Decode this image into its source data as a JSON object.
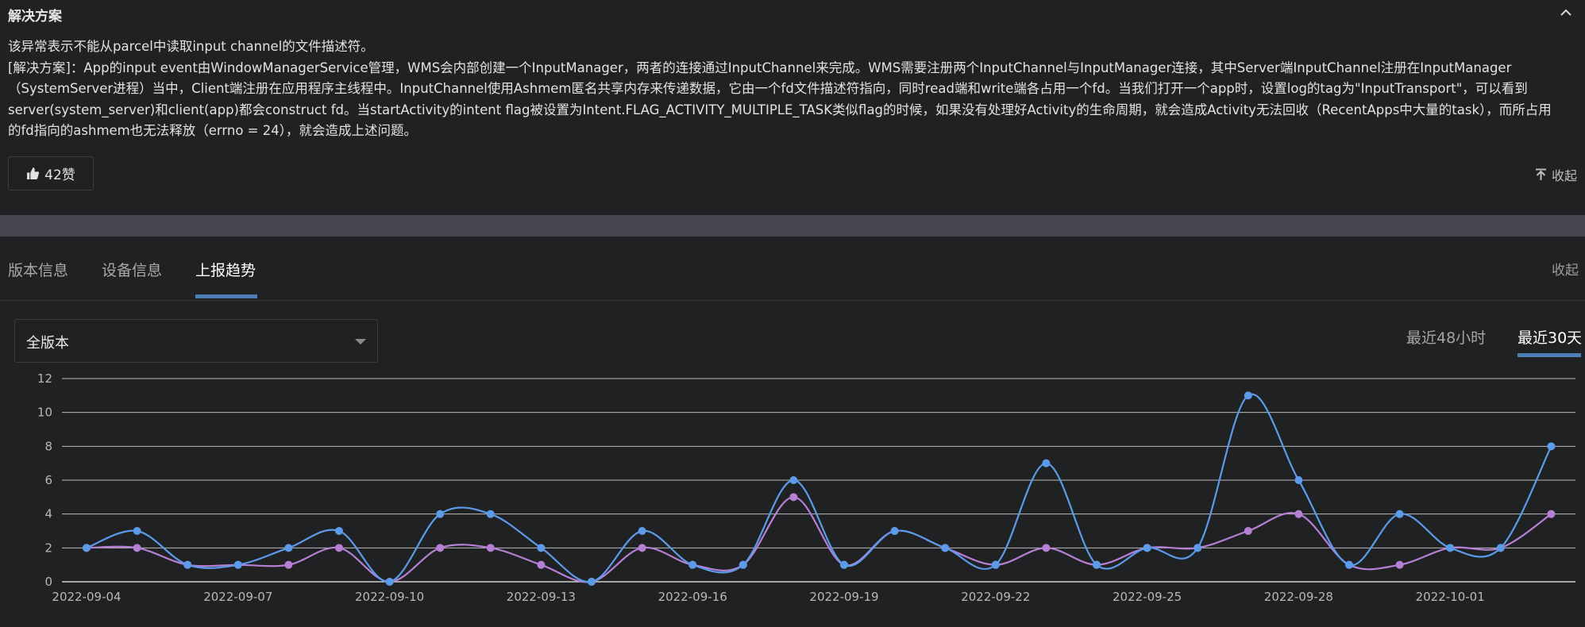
{
  "solution": {
    "title": "解决方案",
    "paragraph1": "该异常表示不能从parcel中读取input channel的文件描述符。",
    "paragraph2": "[解决方案]：App的input event由WindowManagerService管理，WMS会内部创建一个InputManager，两者的连接通过InputChannel来完成。WMS需要注册两个InputChannel与InputManager连接，其中Server端InputChannel注册在InputManager（SystemServer进程）当中，Client端注册在应用程序主线程中。InputChannel使用Ashmem匿名共享内存来传递数据，它由一个fd文件描述符指向，同时read端和write端各占用一个fd。当我们打开一个app时，设置log的tag为\"InputTransport\"，可以看到server(system_server)和client(app)都会construct fd。当startActivity的intent flag被设置为Intent.FLAG_ACTIVITY_MULTIPLE_TASK类似flag的时候，如果没有处理好Activity的生命周期，就会造成Activity无法回收（RecentApps中大量的task），而所占用的fd指向的ashmem也无法释放（errno = 24），就会造成上述问题。",
    "like_label": "42赞",
    "collapse_label": "收起"
  },
  "tabs": {
    "items": [
      "版本信息",
      "设备信息",
      "上报趋势"
    ],
    "active": 2,
    "collapse_label": "收起"
  },
  "filter": {
    "version_select": "全版本",
    "range_tabs": [
      "最近48小时",
      "最近30天"
    ],
    "active_range": 1
  },
  "colors": {
    "background": "#202123",
    "series_blue": "#5b9bea",
    "series_purple": "#b57fd6",
    "accent": "#4d7fb6"
  },
  "icons": {
    "collapse_arrow": "chevron-up-icon",
    "like": "thumbs-up-icon",
    "collapse_top": "arrow-to-top-icon",
    "select_caret": "caret-down-icon"
  },
  "chart_data": {
    "type": "line",
    "x": [
      "2022-09-04",
      "2022-09-05",
      "2022-09-06",
      "2022-09-07",
      "2022-09-08",
      "2022-09-09",
      "2022-09-10",
      "2022-09-11",
      "2022-09-12",
      "2022-09-13",
      "2022-09-14",
      "2022-09-15",
      "2022-09-16",
      "2022-09-17",
      "2022-09-18",
      "2022-09-19",
      "2022-09-20",
      "2022-09-21",
      "2022-09-22",
      "2022-09-23",
      "2022-09-24",
      "2022-09-25",
      "2022-09-26",
      "2022-09-27",
      "2022-09-28",
      "2022-09-29",
      "2022-09-30",
      "2022-10-01",
      "2022-10-02",
      "2022-10-03"
    ],
    "x_tick_labels": [
      "2022-09-04",
      "2022-09-07",
      "2022-09-10",
      "2022-09-13",
      "2022-09-16",
      "2022-09-19",
      "2022-09-22",
      "2022-09-25",
      "2022-09-28",
      "2022-10-01"
    ],
    "series": [
      {
        "values": [
          2,
          3,
          1,
          1,
          2,
          3,
          0,
          4,
          4,
          2,
          0,
          3,
          1,
          1,
          6,
          1,
          3,
          2,
          1,
          7,
          1,
          2,
          2,
          11,
          6,
          1,
          4,
          2,
          2,
          8
        ]
      },
      {
        "values": [
          2,
          2,
          1,
          1,
          1,
          2,
          0,
          2,
          2,
          1,
          0,
          2,
          1,
          1,
          5,
          1,
          3,
          2,
          1,
          2,
          1,
          2,
          2,
          3,
          4,
          1,
          1,
          2,
          2,
          4
        ]
      }
    ],
    "ylim": [
      0,
      12
    ],
    "yticks": [
      0,
      2,
      4,
      6,
      8,
      10,
      12
    ],
    "grid": true
  }
}
